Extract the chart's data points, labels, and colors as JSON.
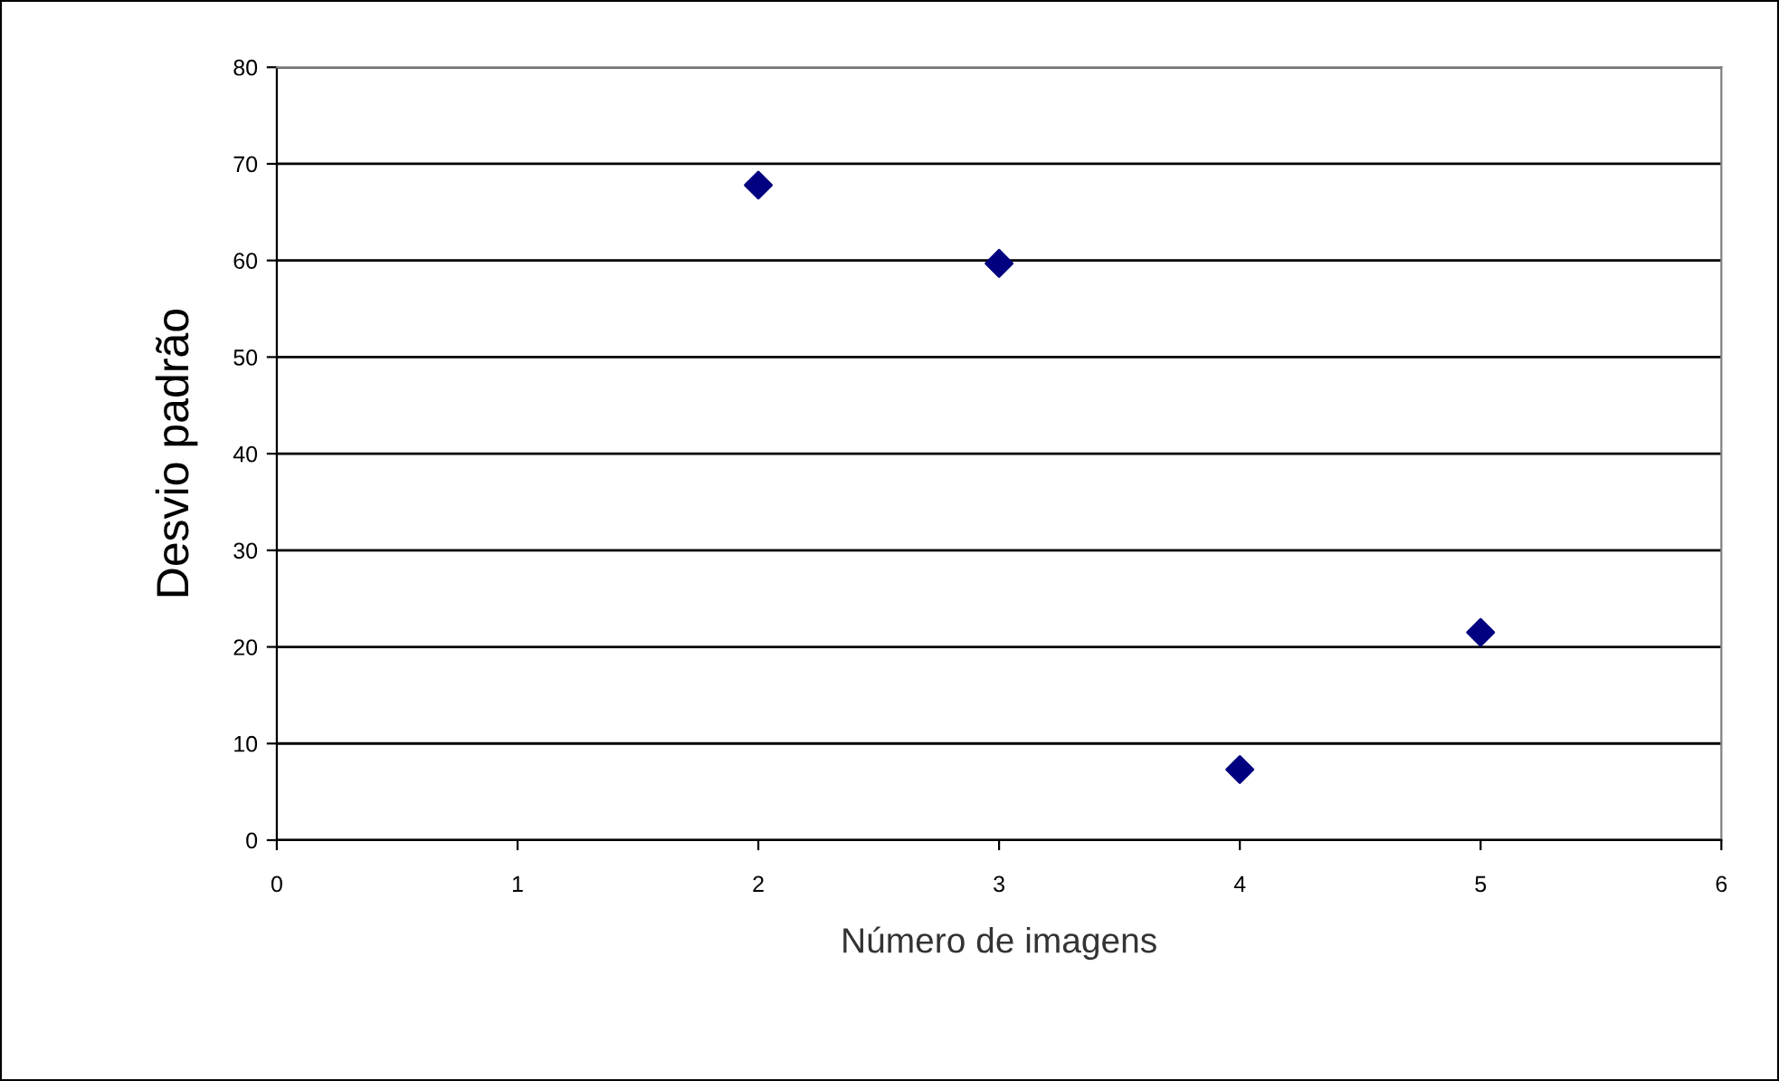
{
  "chart_data": {
    "type": "scatter",
    "xlabel": "Número de imagens",
    "ylabel": "Desvio padrão",
    "x": [
      2,
      3,
      4,
      5
    ],
    "series": [
      {
        "color": "#000080",
        "values": [
          67.8,
          59.7,
          7.3,
          21.5
        ]
      }
    ],
    "xlim": [
      0,
      6
    ],
    "xticks": [
      0,
      1,
      2,
      3,
      4,
      5,
      6
    ],
    "ylim": [
      0,
      80
    ],
    "yticks": [
      0,
      10,
      20,
      30,
      40,
      50,
      60,
      70,
      80
    ],
    "grid": "y",
    "marker": "diamond",
    "legend": false
  }
}
